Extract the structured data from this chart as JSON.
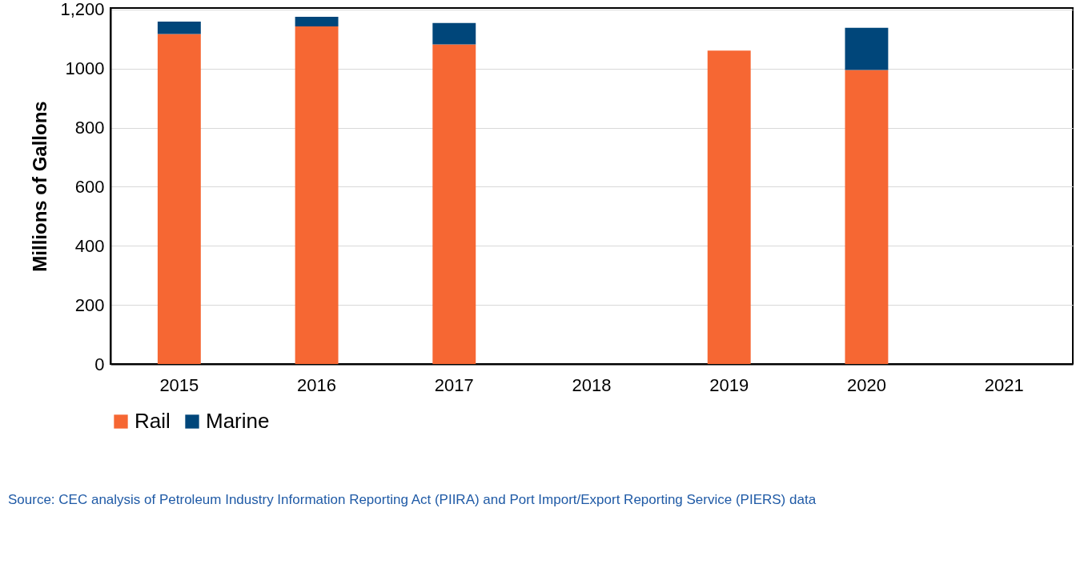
{
  "chart_data": {
    "type": "bar",
    "stacked": true,
    "ylabel": "Millions of Gallons",
    "categories": [
      "2015",
      "2016",
      "2017",
      "2018",
      "2019",
      "2020",
      "2021"
    ],
    "series": [
      {
        "name": "Rail",
        "color": "#f66733",
        "values": [
          1117,
          1143,
          1082,
          null,
          1061,
          995,
          null
        ]
      },
      {
        "name": "Marine",
        "color": "#00467a",
        "values": [
          42,
          32,
          72,
          null,
          null,
          143,
          null
        ]
      }
    ],
    "ylim": [
      0,
      1205
    ],
    "yticks": [
      0,
      200,
      400,
      600,
      800,
      1000,
      {
        "value": 1200,
        "label": "1,200"
      }
    ],
    "grid": "y",
    "legend": "bottom",
    "annotations": [
      "Source: CEC analysis of Petroleum Industry Information Reporting Act (PIIRA) and Port Import/Export Reporting Service (PIERS) data"
    ]
  }
}
